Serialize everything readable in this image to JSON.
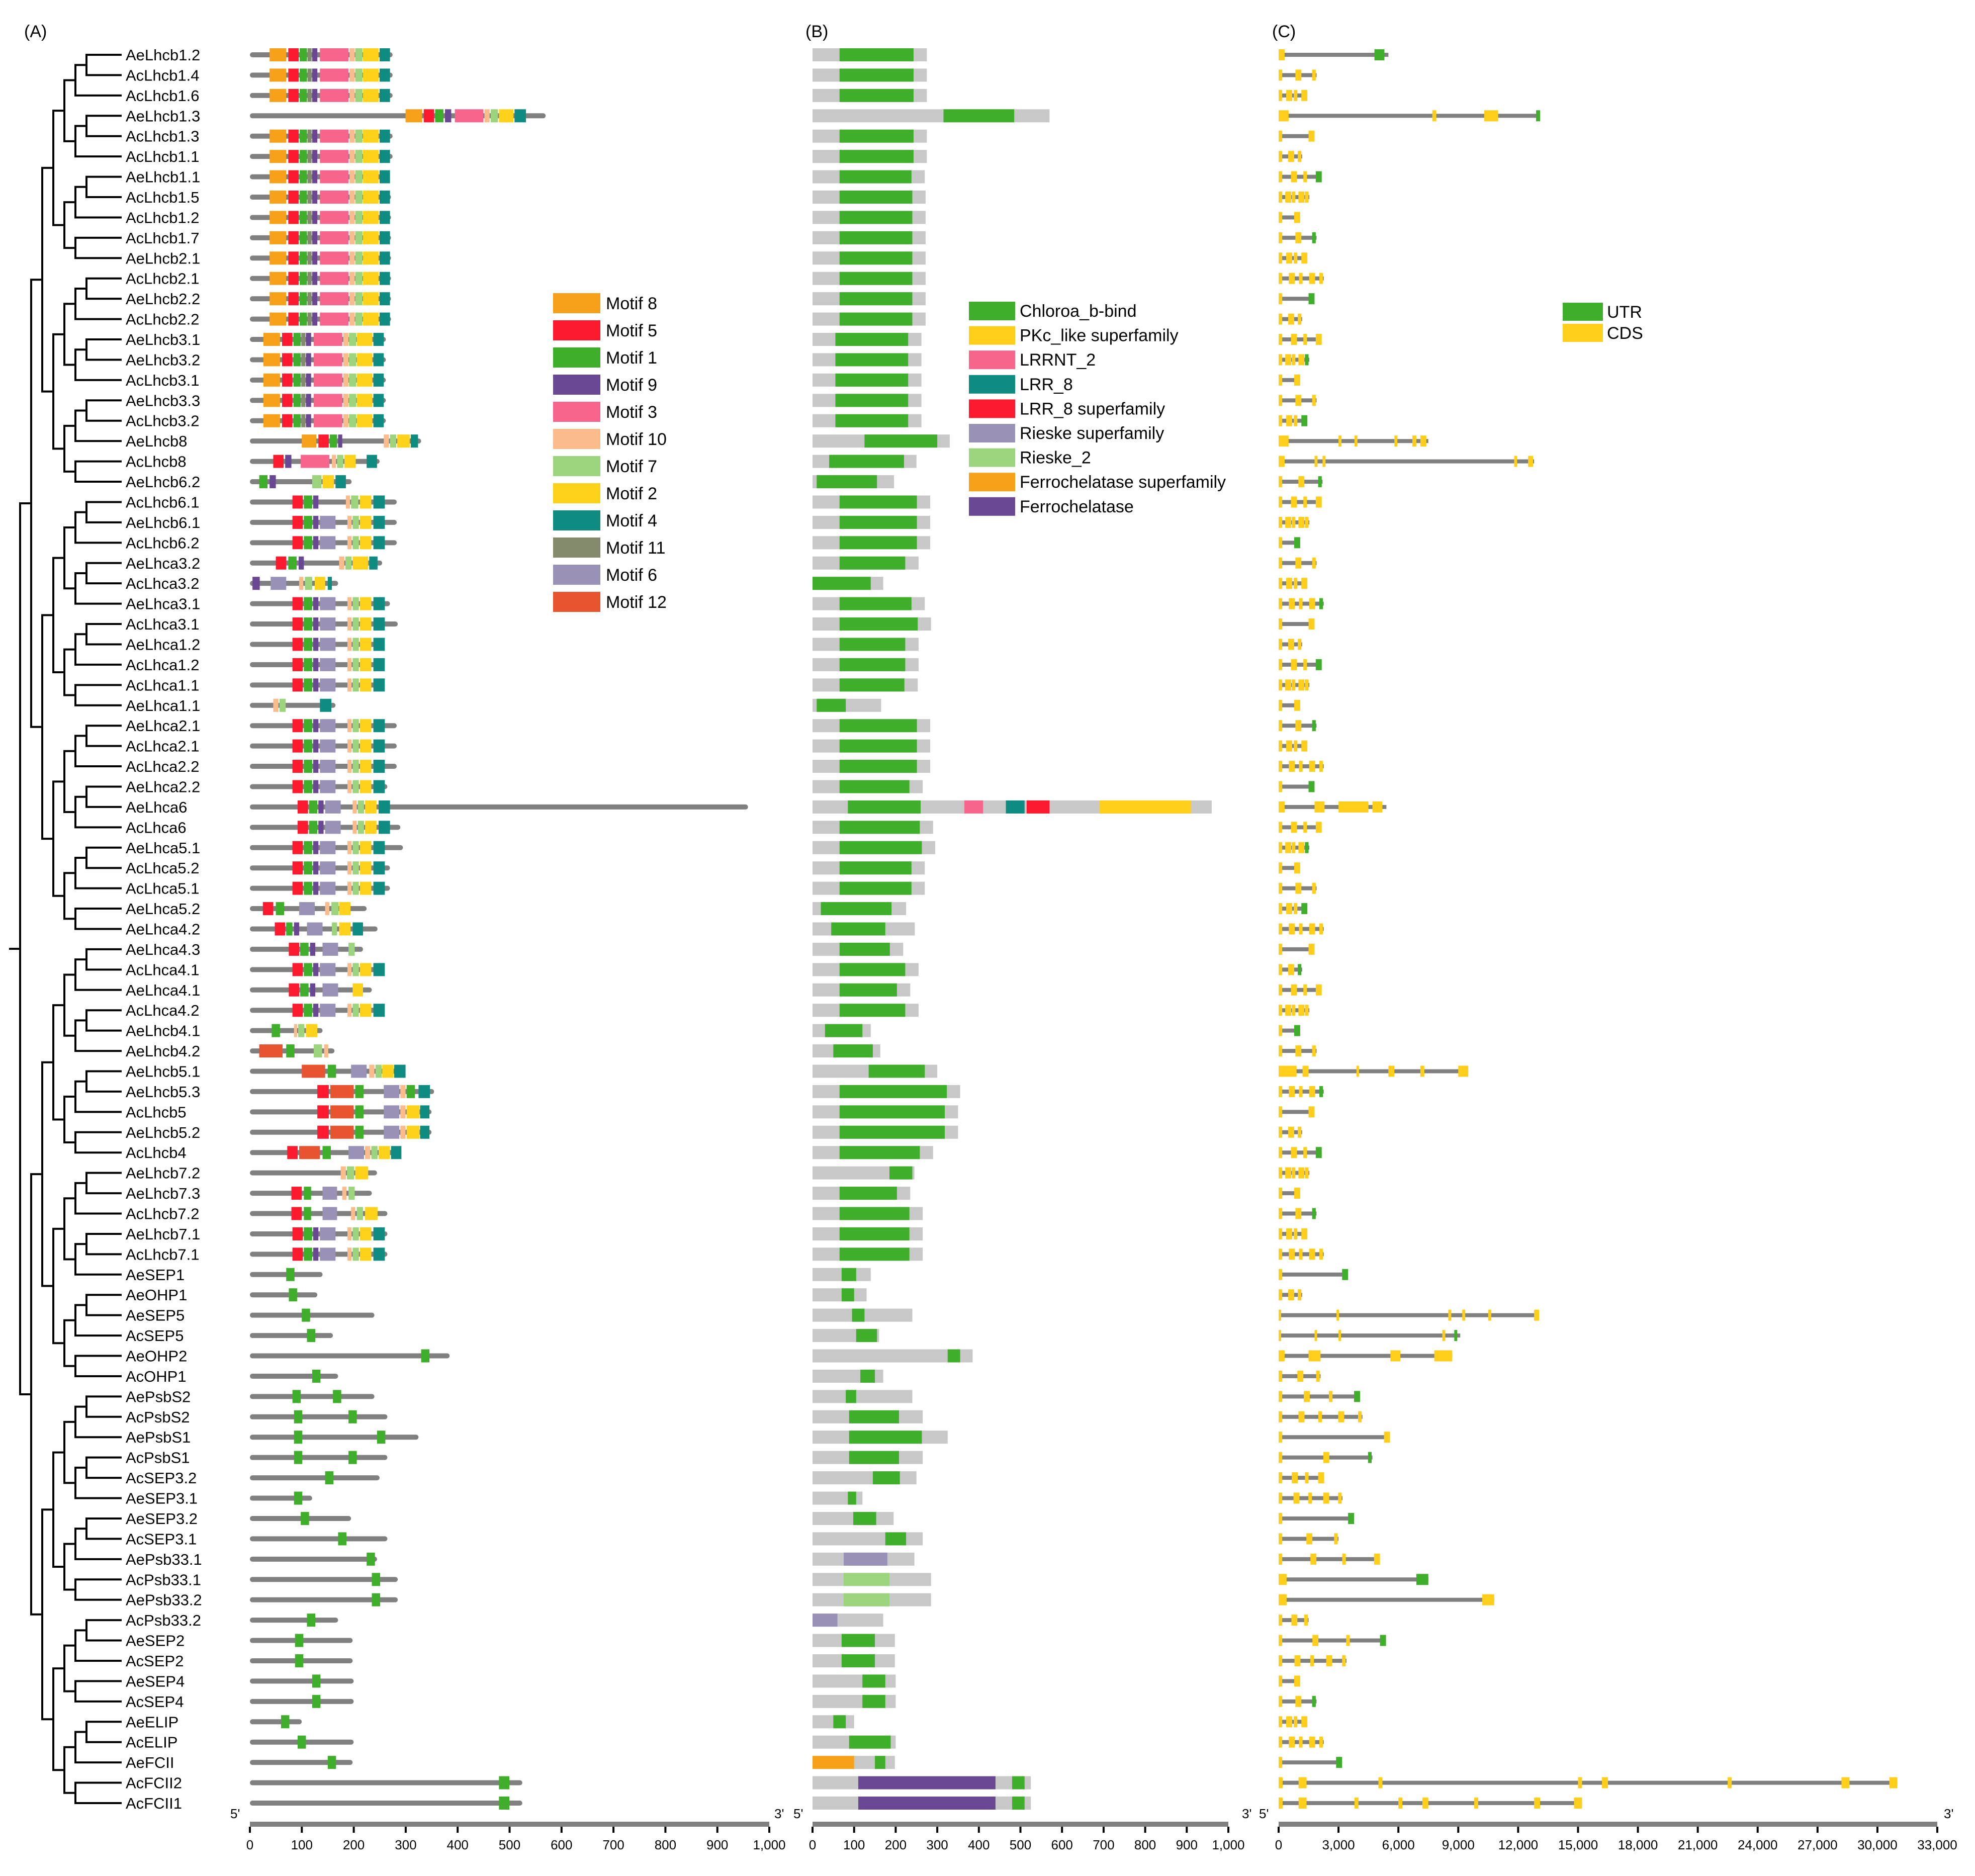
{
  "panels": {
    "a": "(A)",
    "b": "(B)",
    "c": "(C)"
  },
  "axis_labels": {
    "five_prime": "5'",
    "three_prime": "3'"
  },
  "axes": {
    "a": {
      "range": [
        0,
        1000
      ],
      "ticks": [
        "0",
        "100",
        "200",
        "300",
        "400",
        "500",
        "600",
        "700",
        "800",
        "900",
        "1,000"
      ]
    },
    "b": {
      "range": [
        0,
        1000
      ],
      "ticks": [
        "0",
        "100",
        "200",
        "300",
        "400",
        "500",
        "600",
        "700",
        "800",
        "900",
        "1,000"
      ]
    },
    "c": {
      "range": [
        0,
        33000
      ],
      "ticks": [
        "0",
        "3,000",
        "6,000",
        "9,000",
        "12,000",
        "15,000",
        "18,000",
        "21,000",
        "24,000",
        "27,000",
        "30,000",
        "33,000"
      ]
    }
  },
  "colors": {
    "Motif 8": "#f7a11a",
    "Motif 5": "#fe1a2e",
    "Motif 1": "#3fae2a",
    "Motif 9": "#6a4793",
    "Motif 3": "#f7648c",
    "Motif 10": "#fbbb8b",
    "Motif 7": "#9bd47c",
    "Motif 2": "#fed21a",
    "Motif 4": "#0f8c82",
    "Motif 11": "#848b6c",
    "Motif 6": "#9a91b7",
    "Motif 12": "#e95430",
    "Chloroa_b-bind": "#3fae2a",
    "PKc_like superfamily": "#fece1a",
    "LRRNT_2": "#f7648c",
    "LRR_8": "#0f8c82",
    "LRR_8 superfamily": "#fe1a2e",
    "Rieske superfamily": "#9a91b7",
    "Rieske_2": "#9bd47c",
    "Ferrochelatase superfamily": "#f7a11a",
    "Ferrochelatase": "#6a4793",
    "UTR": "#3fae2a",
    "CDS": "#fece1a",
    "protein": "#c8c8c8",
    "line": "#808080"
  },
  "legends": {
    "motifs": [
      "Motif 8",
      "Motif 5",
      "Motif 1",
      "Motif 9",
      "Motif 3",
      "Motif 10",
      "Motif 7",
      "Motif 2",
      "Motif 4",
      "Motif 11",
      "Motif 6",
      "Motif 12"
    ],
    "domains": [
      "Chloroa_b-bind",
      "PKc_like superfamily",
      "LRRNT_2",
      "LRR_8",
      "LRR_8 superfamily",
      "Rieske superfamily",
      "Rieske_2",
      "Ferrochelatase superfamily",
      "Ferrochelatase"
    ],
    "gene": [
      "UTR",
      "CDS"
    ]
  },
  "genes": [
    {
      "name": "AeLhcb1.2",
      "len": 275
    },
    {
      "name": "AcLhcb1.4",
      "len": 275
    },
    {
      "name": "AcLhcb1.6",
      "len": 275
    },
    {
      "name": "AeLhcb1.3",
      "len": 570
    },
    {
      "name": "AcLhcb1.3",
      "len": 275
    },
    {
      "name": "AcLhcb1.1",
      "len": 275
    },
    {
      "name": "AeLhcb1.1",
      "len": 270
    },
    {
      "name": "AcLhcb1.5",
      "len": 272
    },
    {
      "name": "AcLhcb1.2",
      "len": 272
    },
    {
      "name": "AcLhcb1.7",
      "len": 272
    },
    {
      "name": "AeLhcb2.1",
      "len": 272
    },
    {
      "name": "AcLhcb2.1",
      "len": 272
    },
    {
      "name": "AeLhcb2.2",
      "len": 272
    },
    {
      "name": "AcLhcb2.2",
      "len": 272
    },
    {
      "name": "AeLhcb3.1",
      "len": 262
    },
    {
      "name": "AeLhcb3.2",
      "len": 262
    },
    {
      "name": "AcLhcb3.1",
      "len": 262
    },
    {
      "name": "AeLhcb3.3",
      "len": 262
    },
    {
      "name": "AcLhcb3.2",
      "len": 262
    },
    {
      "name": "AeLhcb8",
      "len": 330
    },
    {
      "name": "AcLhcb8",
      "len": 250
    },
    {
      "name": "AeLhcb6.2",
      "len": 196
    },
    {
      "name": "AcLhcb6.1",
      "len": 283
    },
    {
      "name": "AeLhcb6.1",
      "len": 283
    },
    {
      "name": "AcLhcb6.2",
      "len": 283
    },
    {
      "name": "AeLhca3.2",
      "len": 255
    },
    {
      "name": "AcLhca3.2",
      "len": 170
    },
    {
      "name": "AeLhca3.1",
      "len": 270
    },
    {
      "name": "AcLhca3.1",
      "len": 285
    },
    {
      "name": "AeLhca1.2",
      "len": 255
    },
    {
      "name": "AcLhca1.2",
      "len": 255
    },
    {
      "name": "AcLhca1.1",
      "len": 253
    },
    {
      "name": "AeLhca1.1",
      "len": 165
    },
    {
      "name": "AeLhca2.1",
      "len": 283
    },
    {
      "name": "AcLhca2.1",
      "len": 283
    },
    {
      "name": "AcLhca2.2",
      "len": 283
    },
    {
      "name": "AeLhca2.2",
      "len": 265
    },
    {
      "name": "AeLhca6",
      "len": 960
    },
    {
      "name": "AcLhca6",
      "len": 290
    },
    {
      "name": "AeLhca5.1",
      "len": 295
    },
    {
      "name": "AcLhca5.2",
      "len": 270
    },
    {
      "name": "AcLhca5.1",
      "len": 270
    },
    {
      "name": "AeLhca5.2",
      "len": 225
    },
    {
      "name": "AeLhca4.2",
      "len": 246
    },
    {
      "name": "AeLhca4.3",
      "len": 218
    },
    {
      "name": "AcLhca4.1",
      "len": 255
    },
    {
      "name": "AeLhca4.1",
      "len": 235
    },
    {
      "name": "AcLhca4.2",
      "len": 255
    },
    {
      "name": "AeLhcb4.1",
      "len": 140
    },
    {
      "name": "AeLhcb4.2",
      "len": 163
    },
    {
      "name": "AeLhcb5.1",
      "len": 300
    },
    {
      "name": "AeLhcb5.3",
      "len": 355
    },
    {
      "name": "AcLhcb5",
      "len": 350
    },
    {
      "name": "AeLhcb5.2",
      "len": 350
    },
    {
      "name": "AcLhcb4",
      "len": 290
    },
    {
      "name": "AeLhcb7.2",
      "len": 245
    },
    {
      "name": "AeLhcb7.3",
      "len": 235
    },
    {
      "name": "AcLhcb7.2",
      "len": 265
    },
    {
      "name": "AeLhcb7.1",
      "len": 265
    },
    {
      "name": "AcLhcb7.1",
      "len": 265
    },
    {
      "name": "AeSEP1",
      "len": 140
    },
    {
      "name": "AeOHP1",
      "len": 130
    },
    {
      "name": "AeSEP5",
      "len": 240
    },
    {
      "name": "AcSEP5",
      "len": 160
    },
    {
      "name": "AeOHP2",
      "len": 385
    },
    {
      "name": "AcOHP1",
      "len": 170
    },
    {
      "name": "AePsbS2",
      "len": 240
    },
    {
      "name": "AcPsbS2",
      "len": 265
    },
    {
      "name": "AePsbS1",
      "len": 325
    },
    {
      "name": "AcPsbS1",
      "len": 265
    },
    {
      "name": "AcSEP3.2",
      "len": 250
    },
    {
      "name": "AeSEP3.1",
      "len": 120
    },
    {
      "name": "AeSEP3.2",
      "len": 195
    },
    {
      "name": "AcSEP3.1",
      "len": 265
    },
    {
      "name": "AePsb33.1",
      "len": 245
    },
    {
      "name": "AcPsb33.1",
      "len": 285
    },
    {
      "name": "AePsb33.2",
      "len": 285
    },
    {
      "name": "AcPsb33.2",
      "len": 170
    },
    {
      "name": "AeSEP2",
      "len": 198
    },
    {
      "name": "AcSEP2",
      "len": 198
    },
    {
      "name": "AeSEP4",
      "len": 200
    },
    {
      "name": "AcSEP4",
      "len": 200
    },
    {
      "name": "AeELIP",
      "len": 100
    },
    {
      "name": "AcELIP",
      "len": 200
    },
    {
      "name": "AeFCII",
      "len": 198
    },
    {
      "name": "AcFCII2",
      "len": 525
    },
    {
      "name": "AcFCII1",
      "len": 525
    }
  ]
}
